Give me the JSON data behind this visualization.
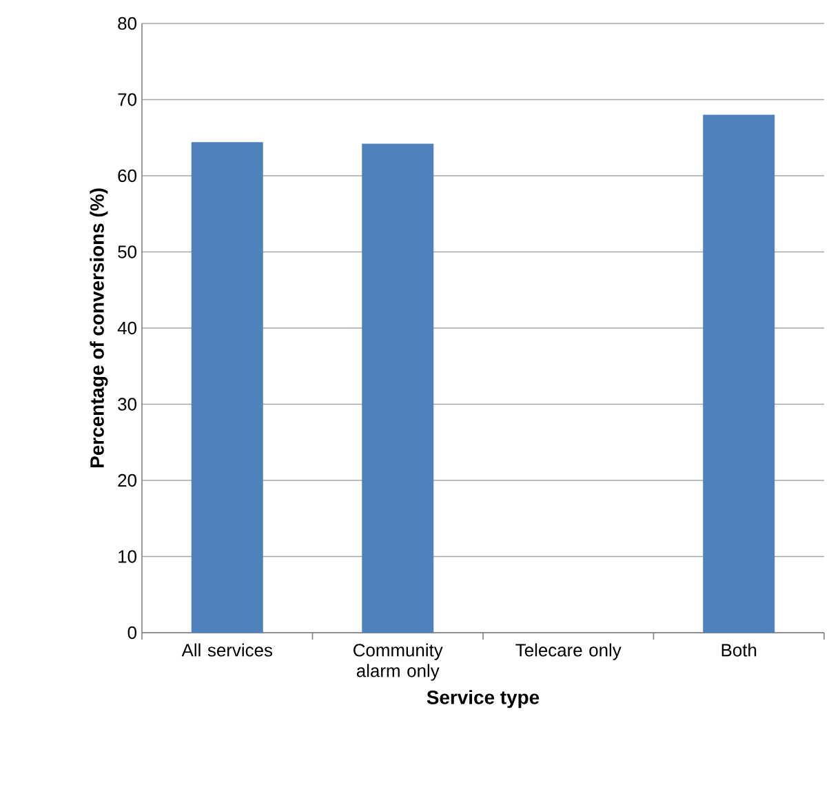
{
  "chart_data": {
    "type": "bar",
    "xlabel": "Service type",
    "ylabel": "Percentage of conversions (%)",
    "categories": [
      "All services",
      "Community alarm only",
      "Telecare only",
      "Both"
    ],
    "values": [
      64.4,
      64.2,
      null,
      68
    ],
    "color": "#4f81bd",
    "ylim": [
      0,
      80
    ],
    "yticks": [
      0,
      10,
      20,
      30,
      40,
      50,
      60,
      70,
      80
    ],
    "grid": "y"
  }
}
